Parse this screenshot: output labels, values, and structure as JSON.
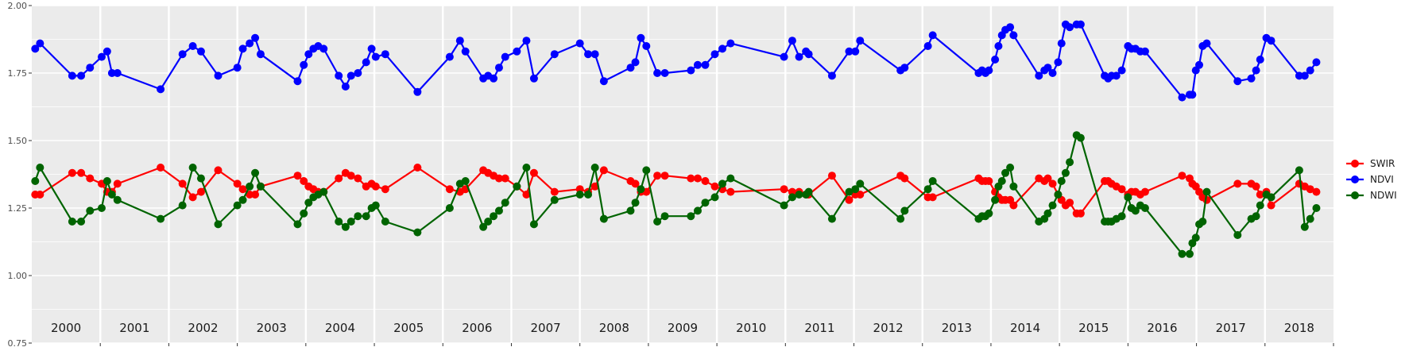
{
  "chart_data": {
    "type": "line",
    "title": "",
    "xlabel": "",
    "ylabel": "",
    "ylim": [
      0.75,
      2.0
    ],
    "xlim": [
      2000.0,
      2019.0
    ],
    "y_ticks": [
      "0.75",
      "1.00",
      "1.25",
      "1.50",
      "1.75",
      "2.00"
    ],
    "year_labels": [
      "2000",
      "2001",
      "2002",
      "2003",
      "2004",
      "2005",
      "2006",
      "2007",
      "2008",
      "2009",
      "2010",
      "2011",
      "2012",
      "2013",
      "2014",
      "2015",
      "2016",
      "2017",
      "2018"
    ],
    "grid": true,
    "legend_position": "right",
    "series": [
      {
        "name": "SWIR",
        "color": "#ff0000",
        "x": [
          2000.05,
          2000.12,
          2000.59,
          2000.72,
          2000.85,
          2001.02,
          2001.1,
          2001.17,
          2001.25,
          2001.88,
          2002.2,
          2002.35,
          2002.47,
          2002.72,
          2003.0,
          2003.08,
          2003.18,
          2003.26,
          2003.34,
          2003.88,
          2003.97,
          2004.04,
          2004.11,
          2004.18,
          2004.26,
          2004.48,
          2004.58,
          2004.66,
          2004.76,
          2004.88,
          2004.96,
          2005.02,
          2005.16,
          2005.63,
          2006.1,
          2006.25,
          2006.33,
          2006.59,
          2006.66,
          2006.74,
          2006.82,
          2006.91,
          2007.08,
          2007.22,
          2007.33,
          2007.63,
          2008.0,
          2008.12,
          2008.22,
          2008.35,
          2008.74,
          2008.81,
          2008.89,
          2008.97,
          2009.13,
          2009.24,
          2009.62,
          2009.72,
          2009.83,
          2009.97,
          2010.08,
          2010.2,
          2010.98,
          2011.1,
          2011.2,
          2011.3,
          2011.34,
          2011.68,
          2011.93,
          2012.02,
          2012.09,
          2012.68,
          2012.74,
          2013.08,
          2013.15,
          2013.82,
          2013.87,
          2013.92,
          2013.97,
          2014.06,
          2014.11,
          2014.16,
          2014.21,
          2014.28,
          2014.33,
          2014.7,
          2014.78,
          2014.83,
          2014.9,
          2014.98,
          2015.03,
          2015.09,
          2015.15,
          2015.25,
          2015.31,
          2015.66,
          2015.71,
          2015.76,
          2015.83,
          2015.91,
          2016.0,
          2016.05,
          2016.11,
          2016.18,
          2016.25,
          2016.79,
          2016.9,
          2016.94,
          2016.99,
          2017.04,
          2017.09,
          2017.15,
          2017.6,
          2017.8,
          2017.87,
          2017.93,
          2018.02,
          2018.09,
          2018.5,
          2018.58,
          2018.66,
          2018.75
        ],
        "y": [
          1.3,
          1.3,
          1.38,
          1.38,
          1.36,
          1.34,
          1.31,
          1.31,
          1.34,
          1.4,
          1.34,
          1.29,
          1.31,
          1.39,
          1.34,
          1.32,
          1.3,
          1.3,
          1.33,
          1.37,
          1.35,
          1.33,
          1.32,
          1.31,
          1.31,
          1.36,
          1.38,
          1.37,
          1.36,
          1.33,
          1.34,
          1.33,
          1.32,
          1.4,
          1.32,
          1.31,
          1.32,
          1.39,
          1.38,
          1.37,
          1.36,
          1.36,
          1.33,
          1.3,
          1.38,
          1.31,
          1.32,
          1.31,
          1.33,
          1.39,
          1.35,
          1.34,
          1.31,
          1.31,
          1.37,
          1.37,
          1.36,
          1.36,
          1.35,
          1.33,
          1.32,
          1.31,
          1.32,
          1.31,
          1.31,
          1.3,
          1.3,
          1.37,
          1.28,
          1.3,
          1.3,
          1.37,
          1.36,
          1.29,
          1.29,
          1.36,
          1.35,
          1.35,
          1.35,
          1.31,
          1.29,
          1.28,
          1.28,
          1.28,
          1.26,
          1.36,
          1.35,
          1.36,
          1.34,
          1.3,
          1.28,
          1.26,
          1.27,
          1.23,
          1.23,
          1.35,
          1.35,
          1.34,
          1.33,
          1.32,
          1.3,
          1.31,
          1.31,
          1.3,
          1.31,
          1.37,
          1.36,
          1.34,
          1.33,
          1.31,
          1.29,
          1.28,
          1.34,
          1.34,
          1.33,
          1.3,
          1.31,
          1.26,
          1.34,
          1.33,
          1.32,
          1.31
        ]
      },
      {
        "name": "NDVI",
        "color": "#0000ff",
        "x": [
          2000.05,
          2000.12,
          2000.59,
          2000.72,
          2000.85,
          2001.02,
          2001.1,
          2001.17,
          2001.25,
          2001.88,
          2002.2,
          2002.35,
          2002.47,
          2002.72,
          2003.0,
          2003.08,
          2003.18,
          2003.26,
          2003.34,
          2003.88,
          2003.97,
          2004.04,
          2004.11,
          2004.18,
          2004.26,
          2004.48,
          2004.58,
          2004.66,
          2004.76,
          2004.88,
          2004.96,
          2005.02,
          2005.16,
          2005.63,
          2006.1,
          2006.25,
          2006.33,
          2006.59,
          2006.66,
          2006.74,
          2006.82,
          2006.91,
          2007.08,
          2007.22,
          2007.33,
          2007.63,
          2008.0,
          2008.12,
          2008.22,
          2008.35,
          2008.74,
          2008.81,
          2008.89,
          2008.97,
          2009.13,
          2009.24,
          2009.62,
          2009.72,
          2009.83,
          2009.97,
          2010.08,
          2010.2,
          2010.98,
          2011.1,
          2011.2,
          2011.3,
          2011.34,
          2011.68,
          2011.93,
          2012.02,
          2012.09,
          2012.68,
          2012.74,
          2013.08,
          2013.15,
          2013.82,
          2013.87,
          2013.92,
          2013.97,
          2014.06,
          2014.11,
          2014.16,
          2014.21,
          2014.28,
          2014.33,
          2014.7,
          2014.78,
          2014.83,
          2014.9,
          2014.98,
          2015.03,
          2015.09,
          2015.15,
          2015.25,
          2015.31,
          2015.66,
          2015.71,
          2015.76,
          2015.83,
          2015.91,
          2016.0,
          2016.05,
          2016.11,
          2016.18,
          2016.25,
          2016.79,
          2016.9,
          2016.94,
          2016.99,
          2017.04,
          2017.09,
          2017.15,
          2017.6,
          2017.8,
          2017.87,
          2017.93,
          2018.02,
          2018.09,
          2018.5,
          2018.58,
          2018.66,
          2018.75
        ],
        "y": [
          1.84,
          1.86,
          1.74,
          1.74,
          1.77,
          1.81,
          1.83,
          1.75,
          1.75,
          1.69,
          1.82,
          1.85,
          1.83,
          1.74,
          1.77,
          1.84,
          1.86,
          1.88,
          1.82,
          1.72,
          1.78,
          1.82,
          1.84,
          1.85,
          1.84,
          1.74,
          1.7,
          1.74,
          1.75,
          1.79,
          1.84,
          1.81,
          1.82,
          1.68,
          1.81,
          1.87,
          1.83,
          1.73,
          1.74,
          1.73,
          1.77,
          1.81,
          1.83,
          1.87,
          1.73,
          1.82,
          1.86,
          1.82,
          1.82,
          1.72,
          1.77,
          1.79,
          1.88,
          1.85,
          1.75,
          1.75,
          1.76,
          1.78,
          1.78,
          1.82,
          1.84,
          1.86,
          1.81,
          1.87,
          1.81,
          1.83,
          1.82,
          1.74,
          1.83,
          1.83,
          1.87,
          1.76,
          1.77,
          1.85,
          1.89,
          1.75,
          1.76,
          1.75,
          1.76,
          1.8,
          1.85,
          1.89,
          1.91,
          1.92,
          1.89,
          1.74,
          1.76,
          1.77,
          1.75,
          1.79,
          1.86,
          1.93,
          1.92,
          1.93,
          1.93,
          1.74,
          1.73,
          1.74,
          1.74,
          1.76,
          1.85,
          1.84,
          1.84,
          1.83,
          1.83,
          1.66,
          1.67,
          1.67,
          1.76,
          1.78,
          1.85,
          1.86,
          1.72,
          1.73,
          1.76,
          1.8,
          1.88,
          1.87,
          1.74,
          1.74,
          1.76,
          1.79
        ]
      },
      {
        "name": "NDWI",
        "color": "#006400",
        "x": [
          2000.05,
          2000.12,
          2000.59,
          2000.72,
          2000.85,
          2001.02,
          2001.1,
          2001.17,
          2001.25,
          2001.88,
          2002.2,
          2002.35,
          2002.47,
          2002.72,
          2003.0,
          2003.08,
          2003.18,
          2003.26,
          2003.34,
          2003.88,
          2003.97,
          2004.04,
          2004.11,
          2004.18,
          2004.26,
          2004.48,
          2004.58,
          2004.66,
          2004.76,
          2004.88,
          2004.96,
          2005.02,
          2005.16,
          2005.63,
          2006.1,
          2006.25,
          2006.33,
          2006.59,
          2006.66,
          2006.74,
          2006.82,
          2006.91,
          2007.08,
          2007.22,
          2007.33,
          2007.63,
          2008.0,
          2008.12,
          2008.22,
          2008.35,
          2008.74,
          2008.81,
          2008.89,
          2008.97,
          2009.13,
          2009.24,
          2009.62,
          2009.72,
          2009.83,
          2009.97,
          2010.08,
          2010.2,
          2010.98,
          2011.1,
          2011.2,
          2011.3,
          2011.34,
          2011.68,
          2011.93,
          2012.02,
          2012.09,
          2012.68,
          2012.74,
          2013.08,
          2013.15,
          2013.82,
          2013.87,
          2013.92,
          2013.97,
          2014.06,
          2014.11,
          2014.16,
          2014.21,
          2014.28,
          2014.33,
          2014.7,
          2014.78,
          2014.83,
          2014.9,
          2014.98,
          2015.03,
          2015.09,
          2015.15,
          2015.25,
          2015.31,
          2015.66,
          2015.71,
          2015.76,
          2015.83,
          2015.91,
          2016.0,
          2016.05,
          2016.11,
          2016.18,
          2016.25,
          2016.79,
          2016.9,
          2016.94,
          2016.99,
          2017.04,
          2017.09,
          2017.15,
          2017.6,
          2017.8,
          2017.87,
          2017.93,
          2018.02,
          2018.09,
          2018.5,
          2018.58,
          2018.66,
          2018.75
        ],
        "y": [
          1.35,
          1.4,
          1.2,
          1.2,
          1.24,
          1.25,
          1.35,
          1.3,
          1.28,
          1.21,
          1.26,
          1.4,
          1.36,
          1.19,
          1.26,
          1.28,
          1.33,
          1.38,
          1.33,
          1.19,
          1.23,
          1.27,
          1.29,
          1.3,
          1.31,
          1.2,
          1.18,
          1.2,
          1.22,
          1.22,
          1.25,
          1.26,
          1.2,
          1.16,
          1.25,
          1.34,
          1.35,
          1.18,
          1.2,
          1.22,
          1.24,
          1.27,
          1.33,
          1.4,
          1.19,
          1.28,
          1.3,
          1.3,
          1.4,
          1.21,
          1.24,
          1.27,
          1.32,
          1.39,
          1.2,
          1.22,
          1.22,
          1.24,
          1.27,
          1.29,
          1.34,
          1.36,
          1.26,
          1.29,
          1.3,
          1.3,
          1.31,
          1.21,
          1.31,
          1.32,
          1.34,
          1.21,
          1.24,
          1.32,
          1.35,
          1.21,
          1.22,
          1.22,
          1.23,
          1.28,
          1.33,
          1.35,
          1.38,
          1.4,
          1.33,
          1.2,
          1.21,
          1.23,
          1.26,
          1.3,
          1.35,
          1.38,
          1.42,
          1.52,
          1.51,
          1.2,
          1.2,
          1.2,
          1.21,
          1.22,
          1.29,
          1.25,
          1.24,
          1.26,
          1.25,
          1.08,
          1.08,
          1.12,
          1.14,
          1.19,
          1.2,
          1.31,
          1.15,
          1.21,
          1.22,
          1.26,
          1.3,
          1.29,
          1.39,
          1.18,
          1.21,
          1.25
        ]
      }
    ]
  }
}
